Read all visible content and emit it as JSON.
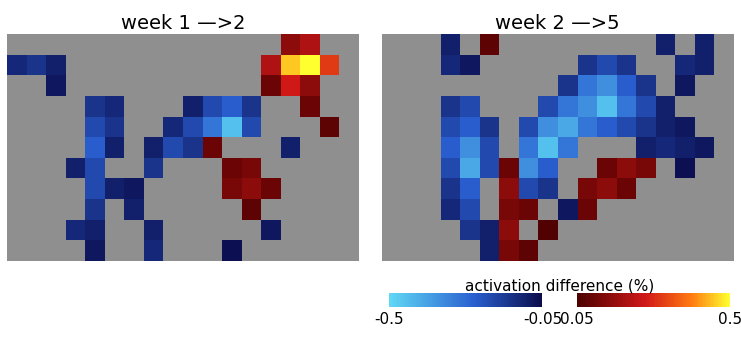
{
  "chart_data": [
    {
      "type": "heatmap",
      "title": "week 1 —>2",
      "tick_labels": false,
      "cells": [
        [
          null,
          null,
          null,
          null,
          null,
          null,
          null,
          null,
          null,
          null,
          null,
          null,
          null,
          null,
          0.15,
          0.2,
          null,
          null
        ],
        [
          -0.12,
          -0.15,
          -0.1,
          null,
          null,
          null,
          null,
          null,
          null,
          null,
          null,
          null,
          null,
          0.2,
          0.45,
          0.5,
          0.3,
          null
        ],
        [
          null,
          null,
          -0.08,
          null,
          null,
          null,
          null,
          null,
          null,
          null,
          null,
          null,
          null,
          0.1,
          0.25,
          0.15,
          null,
          null
        ],
        [
          null,
          null,
          null,
          null,
          -0.15,
          -0.12,
          null,
          null,
          null,
          -0.1,
          -0.2,
          -0.25,
          -0.15,
          null,
          null,
          0.1,
          null,
          null
        ],
        [
          null,
          null,
          null,
          null,
          -0.2,
          -0.15,
          null,
          null,
          -0.12,
          -0.2,
          -0.3,
          -0.45,
          -0.2,
          null,
          null,
          null,
          0.08,
          null
        ],
        [
          null,
          null,
          null,
          null,
          -0.25,
          -0.1,
          null,
          -0.1,
          -0.2,
          -0.15,
          0.1,
          null,
          null,
          null,
          -0.1,
          null,
          null,
          null
        ],
        [
          null,
          null,
          null,
          -0.1,
          -0.2,
          null,
          null,
          -0.15,
          null,
          null,
          null,
          0.1,
          0.12,
          null,
          null,
          null,
          null,
          null
        ],
        [
          null,
          null,
          null,
          null,
          -0.2,
          -0.1,
          -0.08,
          null,
          null,
          null,
          null,
          0.12,
          0.15,
          0.1,
          null,
          null,
          null,
          null
        ],
        [
          null,
          null,
          null,
          null,
          -0.15,
          null,
          -0.1,
          null,
          null,
          null,
          null,
          null,
          0.08,
          null,
          null,
          null,
          null,
          null
        ],
        [
          null,
          null,
          null,
          -0.12,
          -0.1,
          null,
          null,
          -0.1,
          null,
          null,
          null,
          null,
          null,
          -0.08,
          null,
          null,
          null,
          null
        ],
        [
          null,
          null,
          null,
          null,
          -0.08,
          null,
          null,
          -0.12,
          null,
          null,
          null,
          -0.06,
          null,
          null,
          null,
          null,
          null,
          null
        ]
      ]
    },
    {
      "type": "heatmap",
      "title": "week 2 —>5",
      "tick_labels": false,
      "cells": [
        [
          null,
          null,
          null,
          -0.1,
          null,
          0.08,
          null,
          null,
          null,
          null,
          null,
          null,
          null,
          null,
          -0.1,
          null,
          -0.1,
          null
        ],
        [
          null,
          null,
          null,
          -0.12,
          -0.08,
          null,
          null,
          null,
          null,
          null,
          -0.15,
          -0.2,
          -0.15,
          null,
          null,
          -0.12,
          -0.1,
          null
        ],
        [
          null,
          null,
          null,
          null,
          null,
          null,
          null,
          null,
          null,
          -0.15,
          -0.3,
          -0.35,
          -0.25,
          -0.15,
          null,
          -0.08,
          null,
          null
        ],
        [
          null,
          null,
          null,
          -0.15,
          -0.2,
          null,
          null,
          null,
          -0.2,
          -0.3,
          -0.35,
          -0.45,
          -0.3,
          -0.2,
          -0.1,
          null,
          null,
          null
        ],
        [
          null,
          null,
          null,
          -0.2,
          -0.25,
          -0.15,
          null,
          -0.2,
          -0.35,
          -0.4,
          -0.3,
          -0.25,
          -0.2,
          -0.15,
          -0.1,
          -0.08,
          null,
          null
        ],
        [
          null,
          null,
          null,
          -0.25,
          -0.35,
          -0.2,
          null,
          -0.3,
          -0.45,
          -0.3,
          null,
          null,
          null,
          -0.1,
          -0.12,
          -0.1,
          -0.08,
          null
        ],
        [
          null,
          null,
          null,
          -0.2,
          -0.4,
          -0.2,
          0.1,
          -0.35,
          -0.25,
          null,
          null,
          0.1,
          0.15,
          0.12,
          null,
          -0.06,
          null,
          null
        ],
        [
          null,
          null,
          null,
          -0.15,
          -0.25,
          null,
          0.15,
          -0.2,
          -0.15,
          null,
          0.12,
          0.15,
          0.1,
          null,
          null,
          null,
          null,
          null
        ],
        [
          null,
          null,
          null,
          -0.12,
          -0.2,
          null,
          0.12,
          0.1,
          null,
          -0.08,
          0.1,
          null,
          null,
          null,
          null,
          null,
          null,
          null
        ],
        [
          null,
          null,
          null,
          null,
          -0.15,
          -0.1,
          0.15,
          null,
          0.06,
          null,
          null,
          null,
          null,
          null,
          null,
          null,
          null,
          null
        ],
        [
          null,
          null,
          null,
          null,
          null,
          -0.1,
          0.12,
          0.08,
          null,
          null,
          null,
          null,
          null,
          null,
          null,
          null,
          null,
          null
        ]
      ]
    }
  ],
  "colorbar": {
    "label": "activation difference (%)",
    "range": [
      -0.5,
      0.5
    ],
    "ticks": [
      -0.5,
      -0.05,
      0.05,
      0.5
    ]
  }
}
